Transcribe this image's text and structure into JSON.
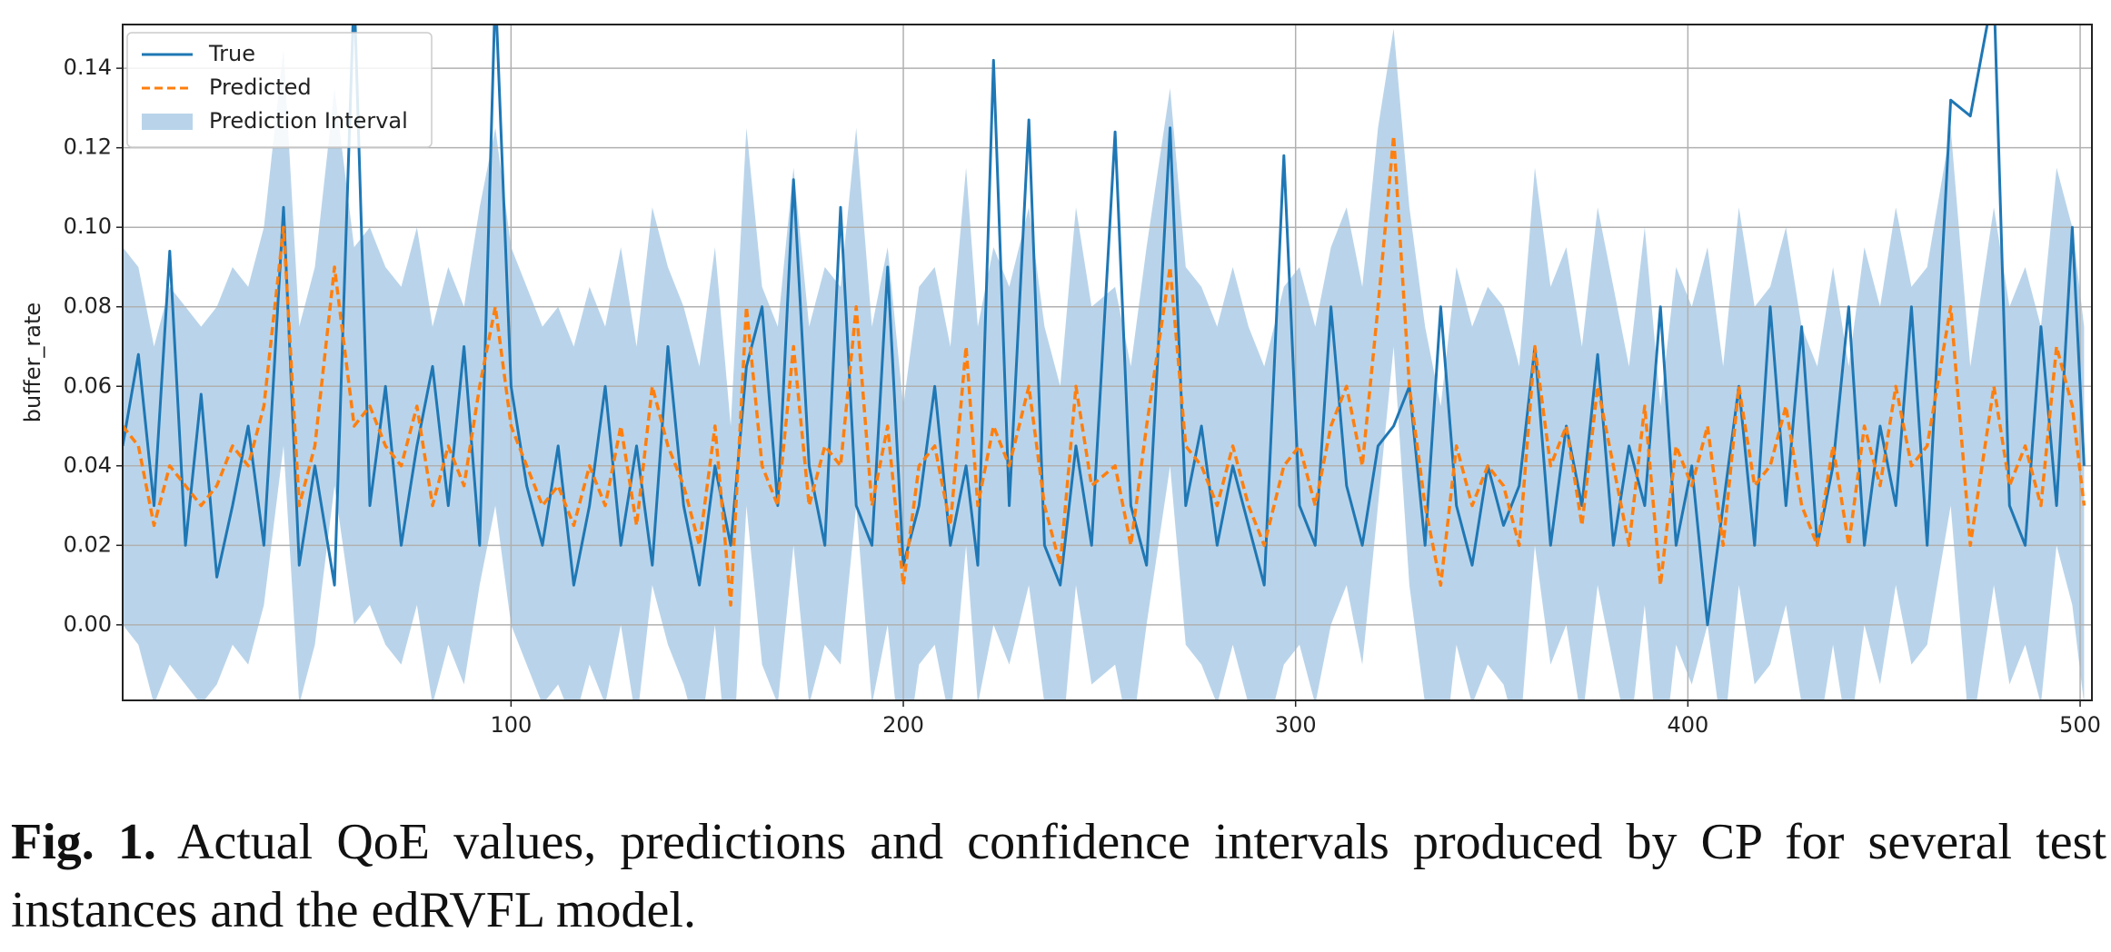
{
  "chart_data": {
    "type": "line",
    "ylabel": "buffer_rate",
    "x": [
      1,
      5,
      9,
      13,
      17,
      21,
      25,
      29,
      33,
      37,
      42,
      46,
      50,
      55,
      60,
      64,
      68,
      72,
      76,
      80,
      84,
      88,
      92,
      96,
      100,
      104,
      108,
      112,
      116,
      120,
      124,
      128,
      132,
      136,
      140,
      144,
      148,
      152,
      156,
      160,
      164,
      168,
      172,
      176,
      180,
      184,
      188,
      192,
      196,
      200,
      204,
      208,
      212,
      216,
      219,
      223,
      227,
      232,
      236,
      240,
      244,
      248,
      254,
      258,
      262,
      268,
      272,
      276,
      280,
      284,
      288,
      292,
      297,
      301,
      305,
      309,
      313,
      317,
      321,
      325,
      329,
      333,
      337,
      341,
      345,
      349,
      353,
      357,
      361,
      365,
      369,
      373,
      377,
      381,
      385,
      389,
      393,
      397,
      401,
      405,
      409,
      413,
      417,
      421,
      425,
      429,
      433,
      437,
      441,
      445,
      449,
      453,
      457,
      461,
      467,
      472,
      478,
      482,
      486,
      490,
      494,
      498,
      501
    ],
    "series": [
      {
        "name": "True",
        "color": "#1f77b4",
        "dashed": false,
        "values": [
          0.045,
          0.068,
          0.03,
          0.094,
          0.02,
          0.058,
          0.012,
          0.03,
          0.05,
          0.02,
          0.105,
          0.015,
          0.04,
          0.01,
          0.16,
          0.03,
          0.06,
          0.02,
          0.045,
          0.065,
          0.03,
          0.07,
          0.02,
          0.16,
          0.06,
          0.035,
          0.02,
          0.045,
          0.01,
          0.03,
          0.06,
          0.02,
          0.045,
          0.015,
          0.07,
          0.03,
          0.01,
          0.04,
          0.02,
          0.065,
          0.08,
          0.03,
          0.112,
          0.04,
          0.02,
          0.105,
          0.03,
          0.02,
          0.09,
          0.015,
          0.03,
          0.06,
          0.02,
          0.04,
          0.015,
          0.142,
          0.03,
          0.127,
          0.02,
          0.01,
          0.045,
          0.02,
          0.124,
          0.03,
          0.015,
          0.125,
          0.03,
          0.05,
          0.02,
          0.04,
          0.025,
          0.01,
          0.118,
          0.03,
          0.02,
          0.08,
          0.035,
          0.02,
          0.045,
          0.05,
          0.06,
          0.02,
          0.08,
          0.03,
          0.015,
          0.04,
          0.025,
          0.035,
          0.07,
          0.02,
          0.05,
          0.03,
          0.068,
          0.02,
          0.045,
          0.03,
          0.08,
          0.02,
          0.04,
          0.0,
          0.03,
          0.06,
          0.02,
          0.08,
          0.03,
          0.075,
          0.02,
          0.04,
          0.08,
          0.02,
          0.05,
          0.03,
          0.08,
          0.02,
          0.132,
          0.128,
          0.16,
          0.03,
          0.02,
          0.075,
          0.03,
          0.1,
          0.04
        ]
      },
      {
        "name": "Predicted",
        "color": "#ff7f0e",
        "dashed": true,
        "values": [
          0.05,
          0.045,
          0.025,
          0.04,
          0.035,
          0.03,
          0.035,
          0.045,
          0.04,
          0.055,
          0.1,
          0.03,
          0.045,
          0.09,
          0.05,
          0.055,
          0.045,
          0.04,
          0.055,
          0.03,
          0.045,
          0.035,
          0.06,
          0.08,
          0.05,
          0.04,
          0.03,
          0.035,
          0.025,
          0.04,
          0.03,
          0.05,
          0.025,
          0.06,
          0.045,
          0.035,
          0.02,
          0.05,
          0.005,
          0.08,
          0.04,
          0.03,
          0.07,
          0.03,
          0.045,
          0.04,
          0.08,
          0.03,
          0.05,
          0.01,
          0.04,
          0.045,
          0.025,
          0.07,
          0.03,
          0.05,
          0.04,
          0.06,
          0.03,
          0.015,
          0.06,
          0.035,
          0.04,
          0.02,
          0.05,
          0.09,
          0.045,
          0.04,
          0.03,
          0.045,
          0.03,
          0.02,
          0.04,
          0.045,
          0.03,
          0.05,
          0.06,
          0.04,
          0.08,
          0.123,
          0.06,
          0.03,
          0.01,
          0.045,
          0.03,
          0.04,
          0.035,
          0.02,
          0.07,
          0.04,
          0.05,
          0.025,
          0.06,
          0.04,
          0.02,
          0.055,
          0.01,
          0.045,
          0.035,
          0.05,
          0.02,
          0.06,
          0.035,
          0.04,
          0.055,
          0.03,
          0.02,
          0.045,
          0.02,
          0.05,
          0.035,
          0.06,
          0.04,
          0.045,
          0.08,
          0.02,
          0.06,
          0.035,
          0.045,
          0.03,
          0.07,
          0.055,
          0.03
        ]
      }
    ],
    "interval": {
      "name": "Prediction Interval",
      "color": "#b9d4ea",
      "lower": [
        0.0,
        -0.005,
        -0.02,
        -0.01,
        -0.015,
        -0.02,
        -0.015,
        -0.005,
        -0.01,
        0.005,
        0.045,
        -0.02,
        -0.005,
        0.035,
        0.0,
        0.005,
        -0.005,
        -0.01,
        0.005,
        -0.02,
        -0.005,
        -0.015,
        0.01,
        0.03,
        0.0,
        -0.01,
        -0.02,
        -0.015,
        -0.025,
        -0.01,
        -0.02,
        0.0,
        -0.025,
        0.01,
        -0.005,
        -0.015,
        -0.03,
        0.0,
        -0.045,
        0.03,
        -0.01,
        -0.02,
        0.02,
        -0.02,
        -0.005,
        -0.01,
        0.03,
        -0.02,
        0.0,
        -0.04,
        -0.01,
        -0.005,
        -0.025,
        0.02,
        -0.02,
        0.0,
        -0.01,
        0.01,
        -0.02,
        -0.035,
        0.01,
        -0.015,
        -0.01,
        -0.03,
        0.0,
        0.04,
        -0.005,
        -0.01,
        -0.02,
        -0.005,
        -0.02,
        -0.03,
        -0.01,
        -0.005,
        -0.02,
        0.0,
        0.01,
        -0.01,
        0.03,
        0.07,
        0.01,
        -0.02,
        -0.04,
        -0.005,
        -0.02,
        -0.01,
        -0.015,
        -0.03,
        0.02,
        -0.01,
        0.0,
        -0.025,
        0.01,
        -0.01,
        -0.03,
        0.005,
        -0.04,
        -0.005,
        -0.015,
        0.0,
        -0.03,
        0.01,
        -0.015,
        -0.01,
        0.005,
        -0.02,
        -0.03,
        -0.005,
        -0.03,
        0.0,
        -0.015,
        0.01,
        -0.01,
        -0.005,
        0.03,
        -0.03,
        0.01,
        -0.015,
        -0.005,
        -0.02,
        0.02,
        0.005,
        -0.02
      ],
      "upper": [
        0.095,
        0.09,
        0.07,
        0.085,
        0.08,
        0.075,
        0.08,
        0.09,
        0.085,
        0.1,
        0.145,
        0.075,
        0.09,
        0.135,
        0.095,
        0.1,
        0.09,
        0.085,
        0.1,
        0.075,
        0.09,
        0.08,
        0.105,
        0.125,
        0.095,
        0.085,
        0.075,
        0.08,
        0.07,
        0.085,
        0.075,
        0.095,
        0.07,
        0.105,
        0.09,
        0.08,
        0.065,
        0.095,
        0.05,
        0.125,
        0.085,
        0.075,
        0.115,
        0.075,
        0.09,
        0.085,
        0.125,
        0.075,
        0.095,
        0.055,
        0.085,
        0.09,
        0.07,
        0.115,
        0.075,
        0.095,
        0.085,
        0.105,
        0.075,
        0.06,
        0.105,
        0.08,
        0.085,
        0.065,
        0.095,
        0.135,
        0.09,
        0.085,
        0.075,
        0.09,
        0.075,
        0.065,
        0.085,
        0.09,
        0.075,
        0.095,
        0.105,
        0.085,
        0.125,
        0.15,
        0.105,
        0.075,
        0.055,
        0.09,
        0.075,
        0.085,
        0.08,
        0.065,
        0.115,
        0.085,
        0.095,
        0.07,
        0.105,
        0.085,
        0.065,
        0.1,
        0.055,
        0.09,
        0.08,
        0.095,
        0.065,
        0.105,
        0.08,
        0.085,
        0.1,
        0.075,
        0.065,
        0.09,
        0.065,
        0.095,
        0.08,
        0.105,
        0.085,
        0.09,
        0.125,
        0.065,
        0.105,
        0.08,
        0.09,
        0.075,
        0.115,
        0.1,
        0.075
      ]
    },
    "xlim": [
      1,
      503
    ],
    "ylim": [
      -0.019,
      0.151
    ],
    "xticks": [
      100,
      200,
      300,
      400,
      500
    ],
    "yticks": [
      {
        "value": 0,
        "label": "0.00"
      },
      {
        "value": 0.02,
        "label": "0.02"
      },
      {
        "value": 0.04,
        "label": "0.04"
      },
      {
        "value": 0.06,
        "label": "0.06"
      },
      {
        "value": 0.08,
        "label": "0.08"
      },
      {
        "value": 0.1,
        "label": "0.10"
      },
      {
        "value": 0.12,
        "label": "0.12"
      },
      {
        "value": 0.14,
        "label": "0.14"
      }
    ],
    "grid": true,
    "legend": "upper left"
  },
  "caption": {
    "label": "Fig. 1.",
    "text": "Actual QoE values, predictions and confidence intervals produced by CP for several test instances and the edRVFL model."
  }
}
